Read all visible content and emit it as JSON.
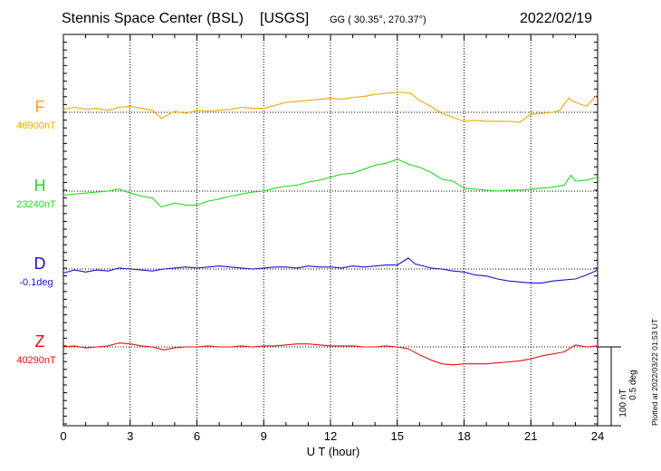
{
  "header": {
    "station": "Stennis Space Center (BSL)",
    "network": "[USGS]",
    "coords": "GG ( 30.35°, 270.37°)",
    "date": "2022/02/19"
  },
  "footer_note": "Plotted at 2022/03/22 01:53 UT",
  "chart_data": {
    "type": "line",
    "xlabel": "U T (hour)",
    "xlim": [
      0,
      24
    ],
    "x_ticks": [
      "0",
      "3",
      "6",
      "9",
      "12",
      "15",
      "18",
      "21",
      "24"
    ],
    "grid": true,
    "scale_bar": {
      "line1": "100 nT",
      "line2": "0.5 deg"
    },
    "series": [
      {
        "name": "F",
        "baseline_label": "46900nT",
        "color": "#f5a800",
        "units": "nT",
        "baseline": 46900,
        "x": [
          0,
          0.5,
          1,
          1.5,
          2,
          2.5,
          3,
          3.5,
          4,
          4.4,
          5,
          5.5,
          6,
          6.5,
          7,
          7.5,
          8,
          8.5,
          9,
          9.5,
          10,
          10.5,
          11,
          11.5,
          12,
          12.5,
          13,
          13.5,
          14,
          14.5,
          15,
          15.3,
          15.6,
          16,
          16.5,
          17,
          17.5,
          18,
          18.5,
          19,
          19.5,
          20,
          20.5,
          21,
          21.5,
          22,
          22.3,
          22.7,
          23,
          23.5,
          24
        ],
        "y": [
          3,
          5,
          3,
          4,
          2,
          5,
          6,
          4,
          2,
          -6,
          1,
          -1,
          2,
          1,
          2,
          3,
          5,
          4,
          4,
          7,
          10,
          11,
          12,
          13,
          14,
          13,
          15,
          16,
          18,
          19,
          20,
          20,
          19,
          12,
          6,
          -1,
          -5,
          -9,
          -8,
          -9,
          -9,
          -9,
          -10,
          -2,
          -1,
          0,
          2,
          14,
          10,
          6,
          18
        ]
      },
      {
        "name": "H",
        "baseline_label": "23240nT",
        "color": "#22dd22",
        "units": "nT",
        "baseline": 23240,
        "x": [
          0,
          0.5,
          1,
          1.5,
          2,
          2.5,
          3,
          3.5,
          4,
          4.4,
          5,
          5.5,
          6,
          6.5,
          7,
          7.5,
          8,
          8.5,
          9,
          9.5,
          10,
          10.5,
          11,
          11.5,
          12,
          12.5,
          13,
          13.5,
          14,
          14.5,
          15,
          15.5,
          16,
          16.5,
          17,
          17.5,
          18,
          18.5,
          19,
          19.5,
          20,
          20.5,
          21,
          21.5,
          22,
          22.5,
          22.8,
          23,
          23.5,
          24
        ],
        "y": [
          -4,
          -3,
          -2,
          -1,
          0,
          2,
          -2,
          -5,
          -7,
          -16,
          -12,
          -14,
          -14,
          -10,
          -8,
          -5,
          -3,
          -1,
          0,
          3,
          5,
          6,
          9,
          11,
          14,
          17,
          18,
          22,
          26,
          28,
          32,
          27,
          24,
          19,
          12,
          10,
          3,
          2,
          1,
          0,
          1,
          1,
          2,
          3,
          4,
          6,
          16,
          10,
          11,
          14
        ]
      },
      {
        "name": "D",
        "baseline_label": "-0.1deg",
        "color": "#1515cc",
        "units": "deg",
        "baseline": -0.1,
        "x": [
          0,
          0.5,
          1,
          1.5,
          2,
          2.5,
          3,
          3.5,
          4,
          4.5,
          5,
          5.5,
          6,
          6.5,
          7,
          7.5,
          8,
          8.5,
          9,
          9.5,
          10,
          10.5,
          11,
          11.5,
          12,
          12.5,
          13,
          13.5,
          14,
          14.5,
          15,
          15.5,
          15.8,
          16,
          16.5,
          17,
          17.5,
          18,
          18.5,
          19,
          19.5,
          20,
          20.5,
          21,
          21.5,
          22,
          22.5,
          23,
          23.5,
          24
        ],
        "y": [
          -4,
          -1,
          -3,
          -1,
          -2,
          1,
          0,
          -1,
          -2,
          0,
          1,
          2,
          1,
          2,
          3,
          2,
          1,
          0,
          1,
          2,
          2,
          1,
          3,
          2,
          2,
          1,
          3,
          2,
          3,
          4,
          4,
          11,
          5,
          4,
          1,
          0,
          -2,
          -3,
          -6,
          -7,
          -10,
          -12,
          -13,
          -14,
          -14,
          -12,
          -11,
          -10,
          -6,
          -1
        ]
      },
      {
        "name": "Z",
        "baseline_label": "40290nT",
        "color": "#e81010",
        "units": "nT",
        "baseline": 40290,
        "x": [
          0,
          0.5,
          1,
          1.5,
          2,
          2.5,
          3,
          3.5,
          4,
          4.5,
          5,
          5.5,
          6,
          6.5,
          7,
          7.5,
          8,
          8.5,
          9,
          9.5,
          10,
          10.5,
          11,
          11.5,
          12,
          12.5,
          13,
          13.5,
          14,
          14.5,
          15,
          15.5,
          16,
          16.5,
          17,
          17.5,
          18,
          18.5,
          19,
          19.5,
          20,
          20.5,
          21,
          21.5,
          22,
          22.5,
          23,
          23.5,
          24
        ],
        "y": [
          0,
          1,
          -1,
          0,
          1,
          4,
          3,
          1,
          0,
          -3,
          -1,
          0,
          0,
          1,
          0,
          0,
          1,
          0,
          1,
          1,
          2,
          3,
          3,
          2,
          1,
          1,
          1,
          0,
          0,
          1,
          0,
          -2,
          -8,
          -13,
          -17,
          -18,
          -17,
          -17,
          -17,
          -16,
          -15,
          -14,
          -12,
          -9,
          -7,
          -5,
          2,
          0,
          1
        ]
      }
    ]
  }
}
